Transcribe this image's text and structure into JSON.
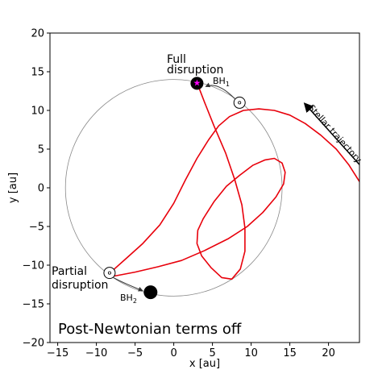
{
  "chart_data": {
    "type": "line",
    "xlabel": "x [au]",
    "ylabel": "y [au]",
    "xlim": [
      -16,
      24
    ],
    "ylim": [
      -20,
      20
    ],
    "xticks": [
      -15,
      -10,
      -5,
      0,
      5,
      10,
      15,
      20
    ],
    "xtick_labels": [
      "−15",
      "−10",
      "−5",
      "0",
      "5",
      "10",
      "15",
      "20"
    ],
    "yticks": [
      -20,
      -15,
      -10,
      -5,
      0,
      5,
      10,
      15,
      20
    ],
    "ytick_labels": [
      "−20",
      "−15",
      "−10",
      "−5",
      "0",
      "5",
      "10",
      "15",
      "20"
    ],
    "grid": false,
    "binary_orbit": {
      "center": [
        0,
        0
      ],
      "radius": 14,
      "color": "#888888"
    },
    "bh1": {
      "x": 3,
      "y": 13.5,
      "label_main": "BH",
      "label_sub": "1"
    },
    "bh2": {
      "x": -3,
      "y": -13.5,
      "label_main": "BH",
      "label_sub": "2"
    },
    "bh1_marker": {
      "x": 3,
      "y": 13.6,
      "color": "#ff00ff"
    },
    "bh2_marker": {
      "x": -8.3,
      "y": -11,
      "color": "#000000"
    },
    "open_circles": [
      {
        "x": 8.5,
        "y": 11
      },
      {
        "x": -8.3,
        "y": -11
      }
    ],
    "series": [
      {
        "color": "#e8000b",
        "points": [
          [
            24,
            0.8
          ],
          [
            22.6,
            3.0
          ],
          [
            21,
            5.0
          ],
          [
            19,
            6.8
          ],
          [
            17,
            8.3
          ],
          [
            15,
            9.4
          ],
          [
            13,
            10.0
          ],
          [
            11,
            10.2
          ],
          [
            9,
            10.0
          ],
          [
            7.2,
            9.2
          ],
          [
            5.8,
            8.0
          ],
          [
            4.5,
            6.2
          ],
          [
            3,
            3.8
          ],
          [
            1.5,
            1.0
          ],
          [
            0,
            -2.0
          ],
          [
            -1.8,
            -4.8
          ],
          [
            -4,
            -7.2
          ],
          [
            -6,
            -9.0
          ],
          [
            -7.8,
            -10.6
          ],
          [
            -8.3,
            -11.2
          ],
          [
            -7.6,
            -11.4
          ],
          [
            -5,
            -10.9
          ],
          [
            -2,
            -10.2
          ],
          [
            1,
            -9.4
          ],
          [
            4,
            -8.1
          ],
          [
            7,
            -6.6
          ],
          [
            9.5,
            -5.0
          ],
          [
            11.5,
            -3.2
          ],
          [
            13.2,
            -1.2
          ],
          [
            14.2,
            0.5
          ],
          [
            14.4,
            2.0
          ],
          [
            14.0,
            3.2
          ],
          [
            13.0,
            3.8
          ],
          [
            11.8,
            3.6
          ],
          [
            10.2,
            2.9
          ],
          [
            8.5,
            1.6
          ],
          [
            6.8,
            0.2
          ],
          [
            5.2,
            -1.8
          ],
          [
            3.8,
            -4.0
          ],
          [
            3.1,
            -5.5
          ],
          [
            3.0,
            -7.2
          ],
          [
            3.6,
            -8.8
          ],
          [
            4.8,
            -10.3
          ],
          [
            6.2,
            -11.6
          ],
          [
            7.5,
            -11.8
          ],
          [
            8.6,
            -10.5
          ],
          [
            9.2,
            -8.2
          ],
          [
            9.2,
            -5.2
          ],
          [
            8.8,
            -2.2
          ],
          [
            7.9,
            1.0
          ],
          [
            6.7,
            4.5
          ],
          [
            5.2,
            8.0
          ],
          [
            4.0,
            11.0
          ],
          [
            3.3,
            12.8
          ],
          [
            3.0,
            13.5
          ]
        ]
      }
    ],
    "trajectory_arrow": {
      "from": [
        24,
        3.0
      ],
      "to": [
        17,
        10.8
      ],
      "label": "Stellar trajectory"
    },
    "annotations": {
      "full_line1": "Full",
      "full_line2": "disruption",
      "partial_line1": "Partial",
      "partial_line2": "disruption",
      "panel_label": "Post-Newtonian terms off"
    }
  }
}
